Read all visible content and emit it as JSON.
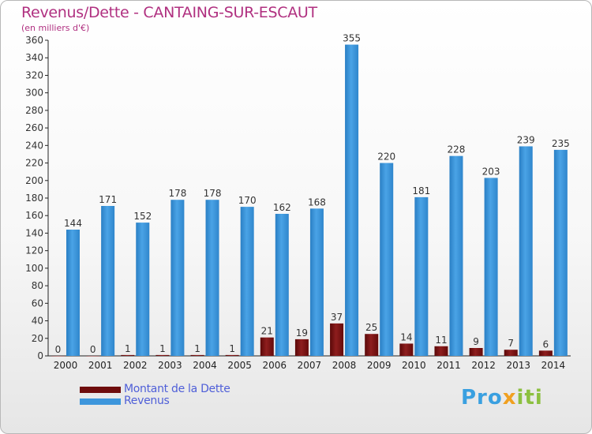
{
  "header": {
    "title": "Revenus/Dette - CANTAING-SUR-ESCAUT",
    "subtitle": "(en milliers d'€)"
  },
  "logo": {
    "text": "Proxiti",
    "colors": [
      "#3aa0e0",
      "#f0a020",
      "#8cc040"
    ]
  },
  "chart_data": {
    "type": "bar",
    "title": "Revenus/Dette - CANTAING-SUR-ESCAUT",
    "subtitle": "(en milliers d'€)",
    "categories": [
      "2000",
      "2001",
      "2002",
      "2003",
      "2004",
      "2005",
      "2006",
      "2007",
      "2008",
      "2009",
      "2010",
      "2011",
      "2012",
      "2013",
      "2014"
    ],
    "series": [
      {
        "name": "Montant de la Dette",
        "color": "#7a1010",
        "values": [
          0,
          0,
          1,
          1,
          1,
          1,
          21,
          19,
          37,
          25,
          14,
          11,
          9,
          7,
          6
        ]
      },
      {
        "name": "Revenus",
        "color": "#3d96dc",
        "values": [
          144,
          171,
          152,
          178,
          178,
          170,
          162,
          168,
          355,
          220,
          181,
          228,
          203,
          239,
          235
        ]
      }
    ],
    "ylim": [
      0,
      360
    ],
    "yticks": [
      0,
      20,
      40,
      60,
      80,
      100,
      120,
      140,
      160,
      180,
      200,
      220,
      240,
      260,
      280,
      300,
      320,
      340,
      360
    ],
    "grid": false,
    "legend": "bottom-left"
  }
}
